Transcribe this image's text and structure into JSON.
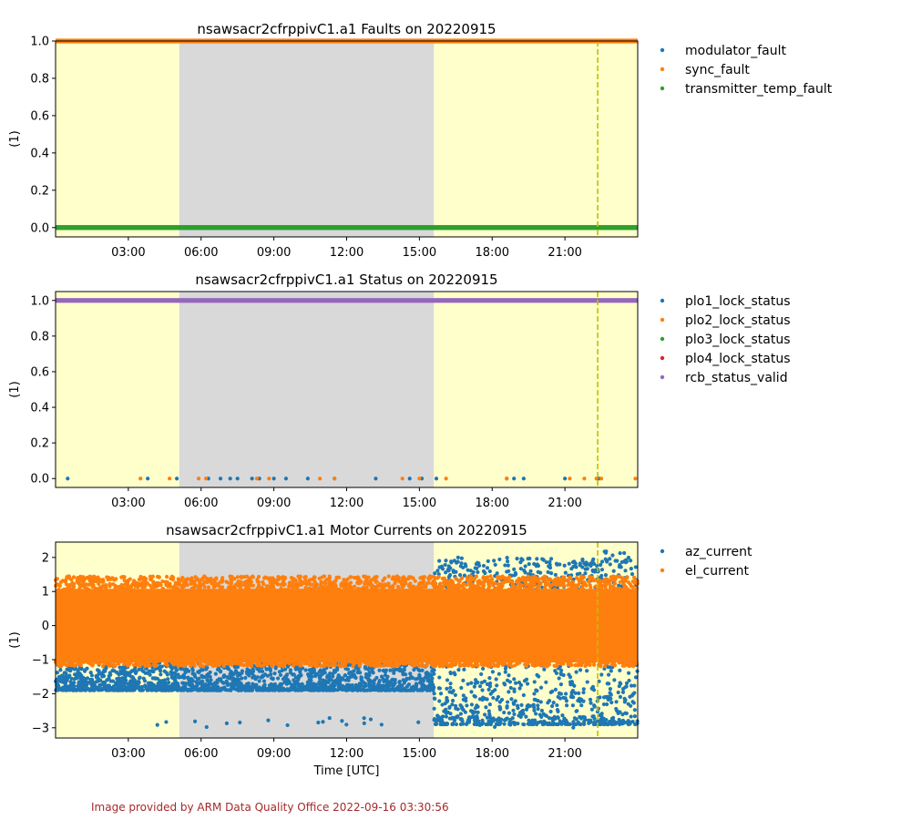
{
  "footer": "Image provided by ARM Data Quality Office 2022-09-16 03:30:56",
  "colors": {
    "c0": "#1f77b4",
    "c1": "#ff7f0e",
    "c2": "#2ca02c",
    "c3": "#d62728",
    "c4": "#9467bd",
    "night_band": "#ffffcc",
    "day_band": "#d9d9d9",
    "marker_line": "#bfbf00"
  },
  "chart_data": [
    {
      "type": "scatter",
      "title": "nsawsacr2cfrppivC1.a1 Faults on 20220915",
      "ylabel": "(1)",
      "xlabel": "",
      "x_unit": "hours UTC",
      "xlim": [
        0,
        24
      ],
      "ylim": [
        -0.05,
        1.0
      ],
      "yticks": [
        "0.0",
        "0.2",
        "0.4",
        "0.6",
        "0.8",
        "1.0"
      ],
      "xticks": [
        "03:00",
        "06:00",
        "09:00",
        "12:00",
        "15:00",
        "18:00",
        "21:00"
      ],
      "shaded_regions": [
        {
          "kind": "night",
          "x": [
            0,
            5.1
          ]
        },
        {
          "kind": "day",
          "x": [
            5.1,
            15.6
          ]
        },
        {
          "kind": "night",
          "x": [
            15.6,
            24
          ]
        }
      ],
      "vertical_marker": 22.35,
      "grid": false,
      "legend_placement": "outside right",
      "series": [
        {
          "name": "modulator_fault",
          "color": "#1f77b4",
          "pattern": "constant",
          "y": 0
        },
        {
          "name": "sync_fault",
          "color": "#ff7f0e",
          "pattern": "constant",
          "y": 1.0
        },
        {
          "name": "transmitter_temp_fault",
          "color": "#2ca02c",
          "pattern": "constant",
          "y": 0
        }
      ]
    },
    {
      "type": "scatter",
      "title": "nsawsacr2cfrppivC1.a1 Status on 20220915",
      "ylabel": "(1)",
      "xlabel": "",
      "x_unit": "hours UTC",
      "xlim": [
        0,
        24
      ],
      "ylim": [
        -0.05,
        1.05
      ],
      "yticks": [
        "0.0",
        "0.2",
        "0.4",
        "0.6",
        "0.8",
        "1.0"
      ],
      "xticks": [
        "03:00",
        "06:00",
        "09:00",
        "12:00",
        "15:00",
        "18:00",
        "21:00"
      ],
      "shaded_regions": [
        {
          "kind": "night",
          "x": [
            0,
            5.1
          ]
        },
        {
          "kind": "day",
          "x": [
            5.1,
            15.6
          ]
        },
        {
          "kind": "night",
          "x": [
            15.6,
            24
          ]
        }
      ],
      "vertical_marker": 22.35,
      "grid": false,
      "legend_placement": "outside right",
      "series": [
        {
          "name": "plo1_lock_status",
          "color": "#1f77b4",
          "pattern": "points",
          "x": [
            0.5,
            3.8,
            5.0,
            6.3,
            6.8,
            7.2,
            7.5,
            8.1,
            8.4,
            9.0,
            9.5,
            10.4,
            11.5,
            13.2,
            14.6,
            15.1,
            15.7,
            18.6,
            18.9,
            19.3,
            21.0,
            22.4
          ],
          "y": 0
        },
        {
          "name": "plo2_lock_status",
          "color": "#ff7f0e",
          "pattern": "points",
          "x": [
            3.5,
            4.7,
            5.9,
            6.2,
            8.3,
            8.8,
            10.9,
            11.5,
            14.3,
            15.0,
            16.1,
            18.6,
            21.2,
            21.8,
            22.3,
            22.5,
            23.9
          ],
          "y": 0
        },
        {
          "name": "plo3_lock_status",
          "color": "#2ca02c",
          "pattern": "none",
          "y": 1.0
        },
        {
          "name": "plo4_lock_status",
          "color": "#d62728",
          "pattern": "none",
          "y": 1.0
        },
        {
          "name": "rcb_status_valid",
          "color": "#9467bd",
          "pattern": "constant",
          "y": 1.0
        }
      ]
    },
    {
      "type": "scatter",
      "title": "nsawsacr2cfrppivC1.a1 Motor Currents on 20220915",
      "ylabel": "(1)",
      "xlabel": "Time [UTC]",
      "x_unit": "hours UTC",
      "xlim": [
        0,
        24
      ],
      "ylim": [
        -3.3,
        2.45
      ],
      "yticks": [
        "−3",
        "−2",
        "−1",
        "0",
        "1",
        "2"
      ],
      "xticks": [
        "03:00",
        "06:00",
        "09:00",
        "12:00",
        "15:00",
        "18:00",
        "21:00"
      ],
      "shaded_regions": [
        {
          "kind": "night",
          "x": [
            0,
            5.1
          ]
        },
        {
          "kind": "day",
          "x": [
            5.1,
            15.6
          ]
        },
        {
          "kind": "night",
          "x": [
            15.6,
            24
          ]
        }
      ],
      "vertical_marker": 22.35,
      "grid": false,
      "legend_placement": "outside right",
      "series": [
        {
          "name": "az_current",
          "color": "#1f77b4",
          "pattern": "dense_noise",
          "y_range_early": [
            -1.9,
            1.2
          ],
          "y_range_late": [
            -2.9,
            2.0
          ],
          "y_extremes": [
            -3.0,
            2.2
          ]
        },
        {
          "name": "el_current",
          "color": "#ff7f0e",
          "pattern": "dense_noise",
          "y_range": [
            -1.2,
            1.45
          ]
        }
      ]
    }
  ]
}
